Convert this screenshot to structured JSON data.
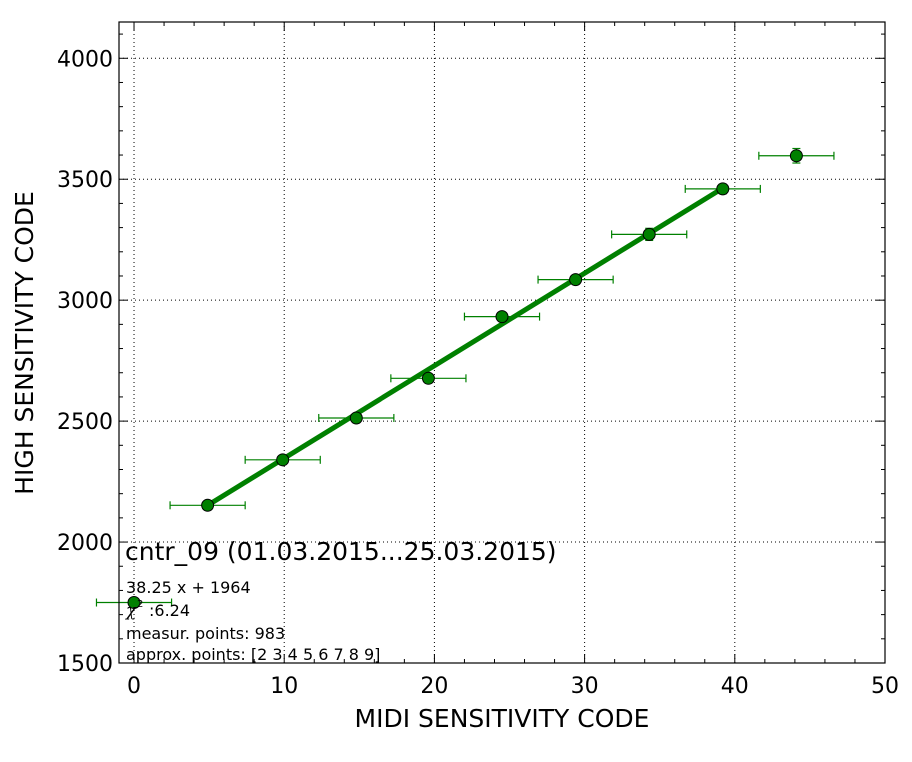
{
  "chart_data": {
    "type": "scatter",
    "title": "cntr_09 (01.03.2015...25.03.2015)",
    "xlabel": "MIDI SENSITIVITY CODE",
    "ylabel": "HIGH SENSITIVITY CODE",
    "xlim": [
      -1,
      50
    ],
    "ylim": [
      1500,
      4150
    ],
    "xticks": [
      0,
      10,
      20,
      30,
      40,
      50
    ],
    "yticks": [
      1500,
      2000,
      2500,
      3000,
      3500,
      4000
    ],
    "grid": true,
    "series": [
      {
        "kind": "errorbar-points",
        "color": "#008000",
        "points": [
          {
            "x": 0.0,
            "y": 1750,
            "xerr": 2.5,
            "yerr": 5
          },
          {
            "x": 4.9,
            "y": 2152,
            "xerr": 2.5,
            "yerr": 8
          },
          {
            "x": 9.9,
            "y": 2340,
            "xerr": 2.5,
            "yerr": 10
          },
          {
            "x": 14.8,
            "y": 2513,
            "xerr": 2.5,
            "yerr": 10
          },
          {
            "x": 19.6,
            "y": 2677,
            "xerr": 2.5,
            "yerr": 12
          },
          {
            "x": 24.5,
            "y": 2932,
            "xerr": 2.5,
            "yerr": 12
          },
          {
            "x": 29.4,
            "y": 3085,
            "xerr": 2.5,
            "yerr": 18
          },
          {
            "x": 34.3,
            "y": 3272,
            "xerr": 2.5,
            "yerr": 25
          },
          {
            "x": 39.2,
            "y": 3460,
            "xerr": 2.5,
            "yerr": 20
          },
          {
            "x": 44.1,
            "y": 3597,
            "xerr": 2.5,
            "yerr": 30
          }
        ]
      },
      {
        "kind": "fit-line",
        "color": "#008000",
        "slope": 38.25,
        "intercept": 1964,
        "x_range": [
          4.9,
          39.2
        ]
      }
    ],
    "annotations": {
      "fit": "38.25 x + 1964",
      "chi2": ":6.24",
      "measur": "measur. points: 983",
      "approx": "approx. points: [2 3 4 5 6 7 8 9]"
    }
  }
}
